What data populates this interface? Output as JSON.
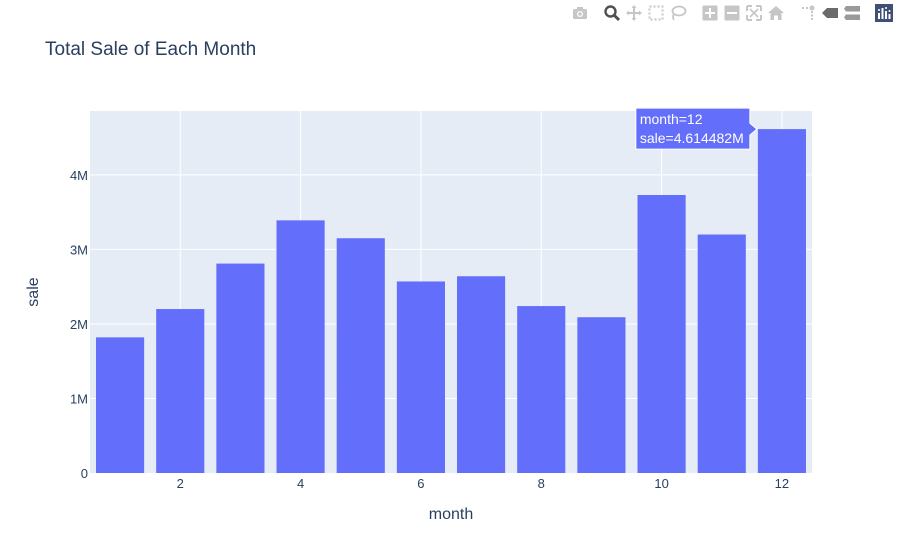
{
  "modebar": {
    "buttons": [
      {
        "name": "camera-icon",
        "group": 1
      },
      {
        "name": "zoom-icon",
        "group": 2
      },
      {
        "name": "pan-icon",
        "group": 2
      },
      {
        "name": "box-select-icon",
        "group": 2
      },
      {
        "name": "lasso-select-icon",
        "group": 2
      },
      {
        "name": "zoom-in-icon",
        "group": 3
      },
      {
        "name": "zoom-out-icon",
        "group": 3
      },
      {
        "name": "autoscale-icon",
        "group": 3
      },
      {
        "name": "reset-axes-icon",
        "group": 3
      },
      {
        "name": "spike-lines-icon",
        "group": 4
      },
      {
        "name": "hover-closest-icon",
        "group": 4
      },
      {
        "name": "hover-compare-icon",
        "group": 4
      },
      {
        "name": "plotly-logo-icon",
        "group": 5
      }
    ]
  },
  "chart_data": {
    "type": "bar",
    "title": "Total Sale of Each Month",
    "xlabel": "month",
    "ylabel": "sale",
    "x": [
      1,
      2,
      3,
      4,
      5,
      6,
      7,
      8,
      9,
      10,
      11,
      12
    ],
    "values": [
      1820000,
      2200000,
      2810000,
      3390000,
      3150000,
      2570000,
      2640000,
      2240000,
      2090000,
      3730000,
      3200000,
      4614482
    ],
    "xlim": [
      0.5,
      12.5
    ],
    "ylim": [
      0,
      4857349
    ],
    "xticks": [
      2,
      4,
      6,
      8,
      10,
      12
    ],
    "xtick_labels": [
      "2",
      "4",
      "6",
      "8",
      "10",
      "12"
    ],
    "yticks": [
      0,
      1000000,
      2000000,
      3000000,
      4000000
    ],
    "ytick_labels": [
      "0",
      "1M",
      "2M",
      "3M",
      "4M"
    ],
    "grid": true,
    "bar_color": "#636efa",
    "plot_bg": "#e5ecf6",
    "tooltip": {
      "bar_index": 11,
      "line1": "month=12",
      "line2": "sale=4.614482M"
    }
  }
}
